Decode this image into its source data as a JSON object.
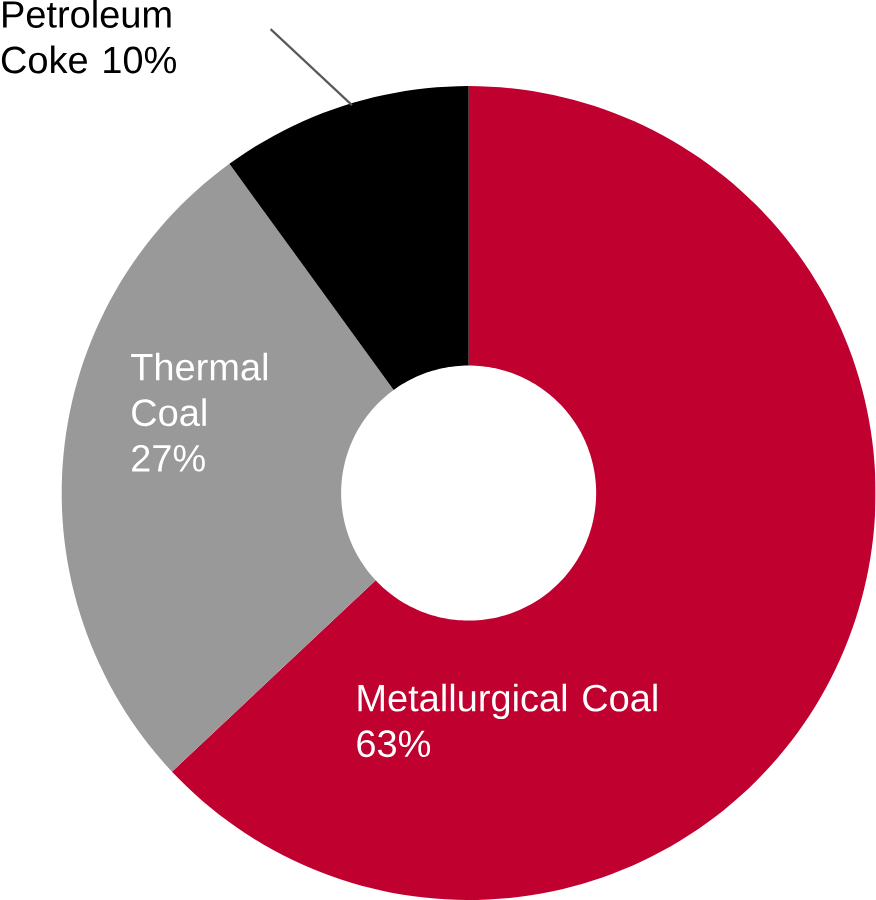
{
  "chart_data": {
    "type": "donut",
    "categories": [
      "Metallurgical Coal",
      "Thermal Coal",
      "Petroleum Coke"
    ],
    "values": [
      63,
      27,
      10
    ],
    "value_labels": [
      "63%",
      "27%",
      "10%"
    ],
    "colors": [
      "#c0002f",
      "#999999",
      "#000000"
    ]
  }
}
